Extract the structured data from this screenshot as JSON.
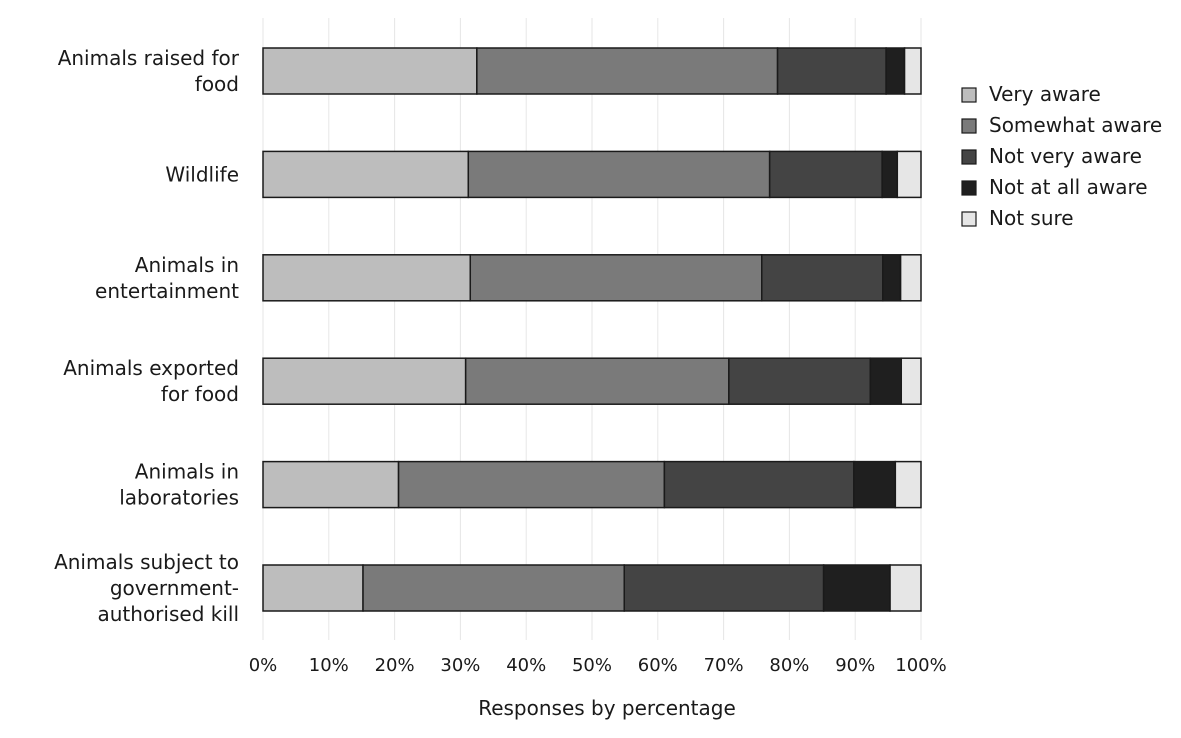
{
  "chart_data": {
    "type": "bar",
    "orientation": "horizontal",
    "stacked": true,
    "categories": [
      [
        "Animals raised for",
        "food"
      ],
      [
        "Wildlife"
      ],
      [
        "Animals in",
        "entertainment"
      ],
      [
        "Animals exported",
        "for food"
      ],
      [
        "Animals in",
        "laboratories"
      ],
      [
        "Animals subject to",
        "government-",
        "authorised kill"
      ]
    ],
    "series": [
      {
        "name": "Very aware",
        "color": "#bdbdbd",
        "values": [
          32.5,
          31.2,
          31.5,
          30.8,
          20.6,
          15.2
        ]
      },
      {
        "name": "Somewhat aware",
        "color": "#7a7a7a",
        "values": [
          45.7,
          45.8,
          44.3,
          40.0,
          40.4,
          39.7
        ]
      },
      {
        "name": "Not very aware",
        "color": "#444444",
        "values": [
          16.5,
          17.1,
          18.4,
          21.5,
          28.8,
          30.3
        ]
      },
      {
        "name": "Not at all aware",
        "color": "#1f1f1f",
        "values": [
          2.8,
          2.3,
          2.7,
          4.7,
          6.3,
          10.1
        ]
      },
      {
        "name": "Not sure",
        "color": "#e6e6e6",
        "values": [
          2.5,
          3.6,
          3.1,
          3.0,
          3.9,
          4.7
        ]
      }
    ],
    "xticks": [
      "0%",
      "10%",
      "20%",
      "30%",
      "40%",
      "50%",
      "60%",
      "70%",
      "80%",
      "90%",
      "100%"
    ],
    "xlim": [
      0,
      100
    ],
    "xlabel": "Responses by percentage",
    "ylabel": "",
    "title": "",
    "grid": true,
    "legend_position": "right"
  }
}
